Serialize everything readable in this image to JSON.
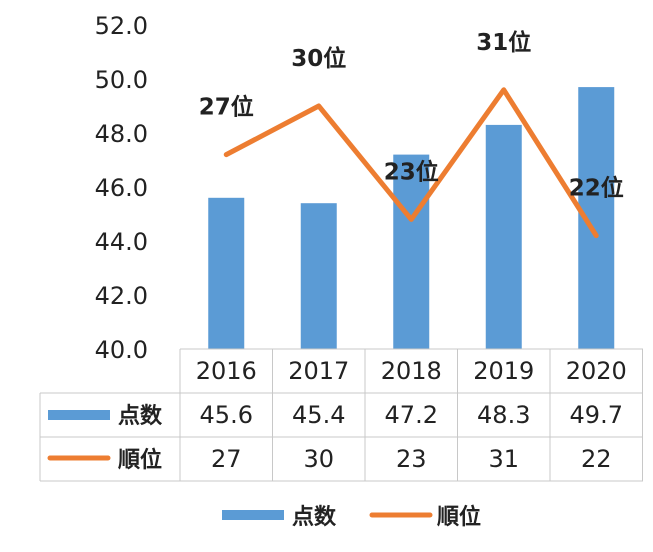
{
  "chart_data": {
    "type": "bar",
    "categories": [
      "2016",
      "2017",
      "2018",
      "2019",
      "2020"
    ],
    "y_ticks": [
      "40.0",
      "42.0",
      "44.0",
      "46.0",
      "48.0",
      "50.0",
      "52.0"
    ],
    "ylim": [
      40,
      52
    ],
    "series": [
      {
        "name": "点数",
        "type": "bar",
        "color": "#5B9BD5",
        "values": [
          45.6,
          45.4,
          47.2,
          48.3,
          49.7
        ],
        "table_values": [
          "45.6",
          "45.4",
          "47.2",
          "48.3",
          "49.7"
        ]
      },
      {
        "name": "順位",
        "type": "line",
        "color": "#ED7D31",
        "values": [
          27,
          30,
          23,
          31,
          22
        ],
        "table_values": [
          "27",
          "30",
          "23",
          "31",
          "22"
        ],
        "data_labels": [
          "27位",
          "30位",
          "23位",
          "31位",
          "22位"
        ],
        "secondary_axis_range": [
          15,
          35
        ]
      }
    ],
    "grid": false,
    "data_table": true,
    "legend": "bottom"
  }
}
